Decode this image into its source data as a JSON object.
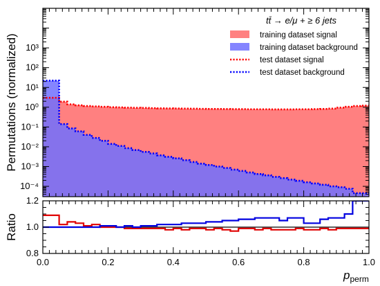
{
  "chart_data": [
    {
      "type": "area",
      "yscale": "log",
      "ylim": [
        3e-05,
        100000
      ],
      "xlim": [
        0.0,
        1.0
      ],
      "ylabel": "Permutations (normalized)",
      "xlabel": "",
      "legend_title": "tt̄ → e/μ + ≥ 6 jets",
      "legend_position": "top-right",
      "y_tick_labels": [
        "10⁻⁴",
        "10⁻³",
        "10⁻²",
        "10⁻¹",
        "10⁰",
        "10¹",
        "10²",
        "10³"
      ],
      "y_tick_values": [
        0.0001,
        0.001,
        0.01,
        0.1,
        1,
        10,
        100,
        1000
      ],
      "bin_edges": [
        0.0,
        0.025,
        0.05,
        0.075,
        0.1,
        0.125,
        0.15,
        0.175,
        0.2,
        0.225,
        0.25,
        0.275,
        0.3,
        0.325,
        0.35,
        0.375,
        0.4,
        0.425,
        0.45,
        0.475,
        0.5,
        0.525,
        0.55,
        0.575,
        0.6,
        0.625,
        0.65,
        0.675,
        0.7,
        0.725,
        0.75,
        0.775,
        0.8,
        0.825,
        0.85,
        0.875,
        0.9,
        0.925,
        0.95,
        0.975,
        1.0
      ],
      "series": [
        {
          "name": "training dataset signal",
          "style": "filled",
          "color": "#ff8080",
          "values": [
            3.0,
            3.0,
            1.9,
            1.4,
            1.25,
            1.15,
            1.1,
            1.05,
            1.0,
            0.98,
            0.95,
            0.93,
            0.92,
            0.9,
            0.88,
            0.87,
            0.86,
            0.85,
            0.84,
            0.83,
            0.82,
            0.82,
            0.81,
            0.8,
            0.8,
            0.79,
            0.79,
            0.79,
            0.78,
            0.78,
            0.78,
            0.79,
            0.79,
            0.8,
            0.82,
            0.85,
            0.95,
            1.05,
            1.15,
            1.2
          ]
        },
        {
          "name": "training dataset background",
          "style": "filled",
          "color": "#7070ff",
          "values": [
            22.0,
            22.0,
            0.14,
            0.085,
            0.06,
            0.04,
            0.028,
            0.02,
            0.014,
            0.011,
            0.0085,
            0.0068,
            0.0055,
            0.0046,
            0.0037,
            0.0031,
            0.0026,
            0.0021,
            0.0017,
            0.0014,
            0.0012,
            0.001,
            0.00085,
            0.0007,
            0.0006,
            0.0005,
            0.00042,
            0.00036,
            0.0003,
            0.00026,
            0.00022,
            0.00019,
            0.00016,
            0.00014,
            0.00012,
            0.0001,
            9e-05,
            7.5e-05,
            4.5e-05,
            4.5e-05
          ]
        },
        {
          "name": "test dataset signal",
          "style": "dotted",
          "color": "#ff0000",
          "values": [
            3.0,
            3.0,
            1.9,
            1.4,
            1.25,
            1.15,
            1.1,
            1.05,
            1.0,
            0.98,
            0.95,
            0.93,
            0.92,
            0.9,
            0.88,
            0.87,
            0.86,
            0.85,
            0.84,
            0.83,
            0.82,
            0.82,
            0.81,
            0.8,
            0.8,
            0.79,
            0.79,
            0.79,
            0.78,
            0.78,
            0.78,
            0.79,
            0.79,
            0.8,
            0.82,
            0.85,
            0.95,
            1.05,
            1.15,
            1.2
          ]
        },
        {
          "name": "test dataset background",
          "style": "dotted",
          "color": "#0000ff",
          "values": [
            22.0,
            22.0,
            0.14,
            0.085,
            0.06,
            0.04,
            0.028,
            0.02,
            0.014,
            0.011,
            0.0085,
            0.0068,
            0.0055,
            0.0046,
            0.0037,
            0.0031,
            0.0026,
            0.0021,
            0.0017,
            0.0014,
            0.0012,
            0.001,
            0.00085,
            0.0007,
            0.0006,
            0.0005,
            0.00042,
            0.00036,
            0.0003,
            0.00026,
            0.00022,
            0.00019,
            0.00016,
            0.00014,
            0.00012,
            0.0001,
            9e-05,
            7.5e-05,
            4.5e-05,
            4.5e-05
          ]
        }
      ]
    },
    {
      "type": "line",
      "ylim": [
        0.8,
        1.2
      ],
      "xlim": [
        0.0,
        1.0
      ],
      "ylabel": "Ratio",
      "xlabel": "p_perm",
      "xlabel_main": "p",
      "xlabel_sub": "perm",
      "x_tick_labels": [
        "0.0",
        "0.2",
        "0.4",
        "0.6",
        "0.8",
        "1.0"
      ],
      "x_tick_values": [
        0.0,
        0.2,
        0.4,
        0.6,
        0.8,
        1.0
      ],
      "y_tick_labels": [
        "0.8",
        "1.0",
        "1.2"
      ],
      "y_tick_values": [
        0.8,
        1.0,
        1.2
      ],
      "reference_line": 1.0,
      "bin_edges": [
        0.0,
        0.025,
        0.05,
        0.075,
        0.1,
        0.125,
        0.15,
        0.175,
        0.2,
        0.225,
        0.25,
        0.275,
        0.3,
        0.325,
        0.35,
        0.375,
        0.4,
        0.425,
        0.45,
        0.475,
        0.5,
        0.525,
        0.55,
        0.575,
        0.6,
        0.625,
        0.65,
        0.675,
        0.7,
        0.725,
        0.75,
        0.775,
        0.8,
        0.825,
        0.85,
        0.875,
        0.9,
        0.925,
        0.95,
        0.975,
        1.0
      ],
      "series": [
        {
          "color": "#e00000",
          "values": [
            1.09,
            1.09,
            1.02,
            1.04,
            1.03,
            1.01,
            1.02,
            1.0,
            1.0,
            1.0,
            0.99,
            0.99,
            0.99,
            0.99,
            0.99,
            0.98,
            0.99,
            0.98,
            0.99,
            0.99,
            0.98,
            0.99,
            0.98,
            0.97,
            0.99,
            0.99,
            0.98,
            0.99,
            0.98,
            0.98,
            0.98,
            0.99,
            0.98,
            0.98,
            0.99,
            0.98,
            0.99,
            0.99,
            0.99,
            0.99
          ]
        },
        {
          "color": "#0000e0",
          "values": [
            1.0,
            1.0,
            1.0,
            1.0,
            1.0,
            1.0,
            1.0,
            1.01,
            1.01,
            1.0,
            1.01,
            1.0,
            1.01,
            1.01,
            1.02,
            1.02,
            1.02,
            1.03,
            1.03,
            1.03,
            1.04,
            1.04,
            1.05,
            1.05,
            1.06,
            1.06,
            1.07,
            1.07,
            1.07,
            1.05,
            1.07,
            1.07,
            1.03,
            1.03,
            1.06,
            1.07,
            1.07,
            1.1,
            1.2,
            1.2
          ]
        }
      ]
    }
  ]
}
